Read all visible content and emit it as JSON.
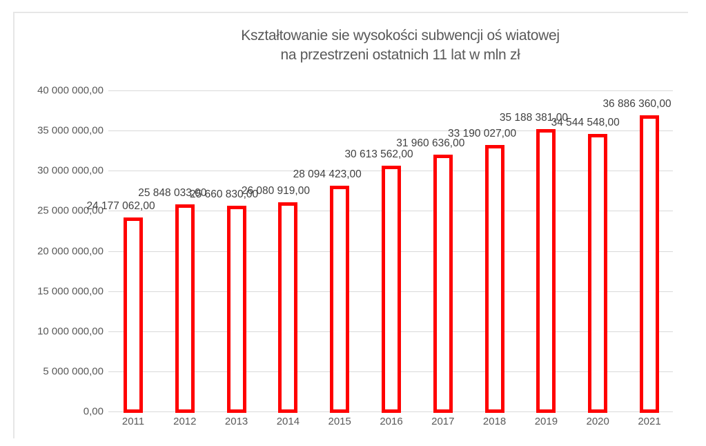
{
  "chart_data": {
    "type": "bar",
    "title": "Kształtowanie sie wysokości subwencji oświatowej na przestrzeni ostatnich 11 lat w mln zł",
    "title_lines": [
      "Kształtowanie sie wysokości subwencji oś wiatowej",
      "na przestrzeni ostatnich 11 lat w mln zł"
    ],
    "xlabel": "",
    "ylabel": "",
    "ylim": [
      0,
      40000000
    ],
    "grid": true,
    "legend": "none",
    "y_ticks": [
      "0,00",
      "5 000 000,00",
      "10 000 000,00",
      "15 000 000,00",
      "20 000 000,00",
      "25 000 000,00",
      "30 000 000,00",
      "35 000 000,00",
      "40 000 000,00"
    ],
    "categories": [
      "2011",
      "2012",
      "2013",
      "2014",
      "2015",
      "2016",
      "2017",
      "2018",
      "2019",
      "2020",
      "2021"
    ],
    "values": [
      24177062,
      25848033,
      25660830,
      26080919,
      28094423,
      30613562,
      31960636,
      33190027,
      35188381,
      34544548,
      36886360
    ],
    "data_labels": [
      "24 177 062,00",
      "25 848 033,00",
      "25 660 830,00",
      "26 080 919,00",
      "28 094 423,00",
      "30 613 562,00",
      "31 960 636,00",
      "33 190 027,00",
      "35 188 381,00",
      "34 544 548,00",
      "36 886 360,00"
    ],
    "bar_color": "#ff0000",
    "bar_style": "outline"
  }
}
